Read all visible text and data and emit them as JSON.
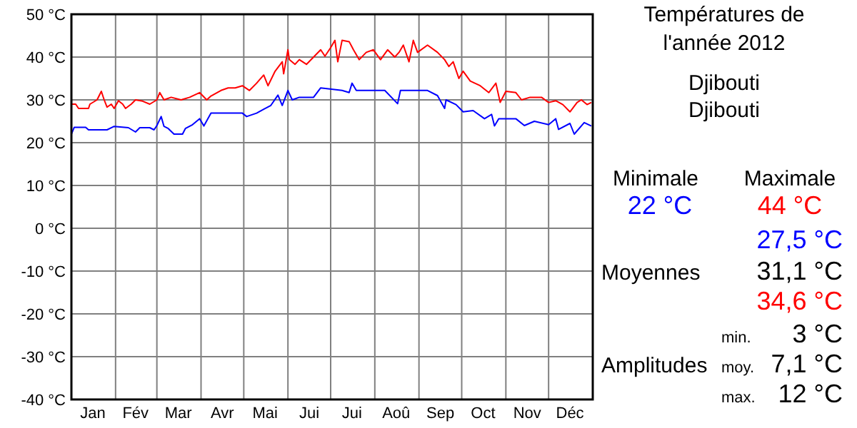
{
  "chart_data": [
    {
      "type": "line",
      "xlim": [
        "2012-01-01",
        "2013-01-01"
      ],
      "ylim": [
        -40,
        50
      ],
      "grid": true,
      "line_style": "solid",
      "marker": "none",
      "xticks": [
        {
          "value": "2012-01-01",
          "label": null
        },
        {
          "value": "2012-01-16",
          "label": "Jan"
        },
        {
          "value": "2012-02-01",
          "label": null
        },
        {
          "value": "2012-02-15",
          "label": "Fév"
        },
        {
          "value": "2012-03-01",
          "label": null
        },
        {
          "value": "2012-03-16",
          "label": "Mar"
        },
        {
          "value": "2012-04-01",
          "label": null
        },
        {
          "value": "2012-04-16",
          "label": "Avr"
        },
        {
          "value": "2012-05-01",
          "label": null
        },
        {
          "value": "2012-05-16",
          "label": "Mai"
        },
        {
          "value": "2012-06-01",
          "label": null
        },
        {
          "value": "2012-06-16",
          "label": "Jui"
        },
        {
          "value": "2012-07-01",
          "label": null
        },
        {
          "value": "2012-07-16",
          "label": "Jui"
        },
        {
          "value": "2012-08-01",
          "label": null
        },
        {
          "value": "2012-08-16",
          "label": "Aoû"
        },
        {
          "value": "2012-09-01",
          "label": null
        },
        {
          "value": "2012-09-16",
          "label": "Sep"
        },
        {
          "value": "2012-10-01",
          "label": null
        },
        {
          "value": "2012-10-16",
          "label": "Oct"
        },
        {
          "value": "2012-11-01",
          "label": null
        },
        {
          "value": "2012-11-16",
          "label": "Nov"
        },
        {
          "value": "2012-12-01",
          "label": null
        },
        {
          "value": "2012-12-16",
          "label": "Déc"
        },
        {
          "value": "2013-01-01",
          "label": null
        }
      ],
      "yticks": [
        {
          "value": -40,
          "label": "-40 °C"
        },
        {
          "value": -30,
          "label": "-30 °C"
        },
        {
          "value": -20,
          "label": "-20 °C"
        },
        {
          "value": -10,
          "label": "-10 °C"
        },
        {
          "value": 0,
          "label": "0 °C"
        },
        {
          "value": 10,
          "label": "10 °C"
        },
        {
          "value": 20,
          "label": "20 °C"
        },
        {
          "value": 30,
          "label": "30 °C"
        },
        {
          "value": 40,
          "label": "40 °C"
        },
        {
          "value": 50,
          "label": "50 °C"
        }
      ],
      "series": [
        {
          "color": "#ff0000",
          "x": [
            "2012-01-01",
            "2012-01-04",
            "2012-01-06",
            "2012-01-13",
            "2012-01-14",
            "2012-01-19",
            "2012-01-22",
            "2012-01-24",
            "2012-01-26",
            "2012-01-29",
            "2012-01-31",
            "2012-02-03",
            "2012-02-06",
            "2012-02-08",
            "2012-02-12",
            "2012-02-15",
            "2012-02-20",
            "2012-02-25",
            "2012-03-01",
            "2012-03-03",
            "2012-03-06",
            "2012-03-11",
            "2012-03-18",
            "2012-03-24",
            "2012-03-31",
            "2012-04-05",
            "2012-04-08",
            "2012-04-15",
            "2012-04-20",
            "2012-04-25",
            "2012-04-30",
            "2012-05-05",
            "2012-05-10",
            "2012-05-15",
            "2012-05-18",
            "2012-05-23",
            "2012-05-28",
            "2012-05-29",
            "2012-06-01",
            "2012-06-02",
            "2012-06-06",
            "2012-06-09",
            "2012-06-14",
            "2012-06-19",
            "2012-06-24",
            "2012-06-27",
            "2012-07-01",
            "2012-07-04",
            "2012-07-06",
            "2012-07-09",
            "2012-07-14",
            "2012-07-17",
            "2012-07-21",
            "2012-07-26",
            "2012-07-31",
            "2012-08-05",
            "2012-08-10",
            "2012-08-15",
            "2012-08-18",
            "2012-08-21",
            "2012-08-25",
            "2012-08-28",
            "2012-08-31",
            "2012-09-07",
            "2012-09-14",
            "2012-09-19",
            "2012-09-22",
            "2012-09-25",
            "2012-09-29",
            "2012-10-02",
            "2012-10-07",
            "2012-10-14",
            "2012-10-20",
            "2012-10-25",
            "2012-10-28",
            "2012-11-01",
            "2012-11-08",
            "2012-11-12",
            "2012-11-18",
            "2012-11-26",
            "2012-12-01",
            "2012-12-06",
            "2012-12-11",
            "2012-12-16",
            "2012-12-21",
            "2012-12-24",
            "2012-12-28",
            "2012-12-31"
          ],
          "values": [
            29,
            29,
            28,
            28,
            29,
            30,
            32,
            30,
            28.3,
            29,
            28,
            29.8,
            29,
            28,
            29,
            30,
            29.7,
            29,
            30,
            31.7,
            30,
            30.6,
            30,
            30.6,
            31.7,
            30,
            30.9,
            32.2,
            32.8,
            32.8,
            33.3,
            32.2,
            33.9,
            35.8,
            33.3,
            36.7,
            38.9,
            36.1,
            41.7,
            39.4,
            38.3,
            39.4,
            38.3,
            40,
            41.7,
            40.2,
            42.2,
            43.9,
            38.9,
            43.9,
            43.6,
            41.7,
            39.4,
            41.1,
            41.7,
            39.4,
            41.7,
            40,
            41.1,
            42.8,
            38.9,
            43.9,
            41.1,
            42.8,
            41.1,
            39.4,
            37.8,
            38.9,
            35,
            36.7,
            34.4,
            33.3,
            31.7,
            33.9,
            29.4,
            32,
            31.7,
            30,
            30.6,
            30.6,
            29.4,
            29.8,
            28.9,
            27.2,
            29.4,
            30,
            28.9,
            29.4
          ]
        },
        {
          "color": "#0000ff",
          "x": [
            "2012-01-01",
            "2012-01-03",
            "2012-01-11",
            "2012-01-13",
            "2012-01-26",
            "2012-01-31",
            "2012-02-10",
            "2012-02-15",
            "2012-02-18",
            "2012-02-25",
            "2012-02-28",
            "2012-03-01",
            "2012-03-04",
            "2012-03-06",
            "2012-03-09",
            "2012-03-13",
            "2012-03-19",
            "2012-03-21",
            "2012-03-26",
            "2012-03-31",
            "2012-04-03",
            "2012-04-08",
            "2012-04-20",
            "2012-04-30",
            "2012-05-03",
            "2012-05-10",
            "2012-05-15",
            "2012-05-20",
            "2012-05-25",
            "2012-05-28",
            "2012-06-01",
            "2012-06-04",
            "2012-06-09",
            "2012-06-19",
            "2012-06-24",
            "2012-07-09",
            "2012-07-14",
            "2012-07-16",
            "2012-07-19",
            "2012-07-29",
            "2012-08-08",
            "2012-08-17",
            "2012-08-19",
            "2012-08-28",
            "2012-09-07",
            "2012-09-14",
            "2012-09-19",
            "2012-09-20",
            "2012-09-27",
            "2012-10-02",
            "2012-10-09",
            "2012-10-17",
            "2012-10-22",
            "2012-10-24",
            "2012-10-27",
            "2012-11-08",
            "2012-11-14",
            "2012-11-21",
            "2012-12-01",
            "2012-12-06",
            "2012-12-08",
            "2012-12-16",
            "2012-12-19",
            "2012-12-26",
            "2012-12-31"
          ],
          "values": [
            22,
            23.6,
            23.6,
            23,
            23,
            23.8,
            23.5,
            22.5,
            23.5,
            23.5,
            23,
            24,
            26.1,
            23.8,
            23.3,
            22,
            22,
            23.3,
            24.2,
            25.6,
            23.9,
            26.9,
            26.9,
            26.9,
            26.1,
            26.9,
            27.8,
            28.7,
            31.1,
            28.7,
            32.2,
            30,
            30.6,
            30.6,
            32.8,
            32.2,
            31.7,
            33.9,
            32.2,
            32.2,
            32.2,
            29.1,
            32.2,
            32.2,
            32.2,
            31,
            28,
            30,
            28.9,
            27.2,
            27.5,
            25.6,
            26.6,
            23.9,
            25.6,
            25.6,
            24,
            25,
            24.2,
            25.6,
            23.1,
            24.5,
            22,
            24.7,
            23.9
          ]
        }
      ]
    },
    {
      "type": "other",
      "title": "Températures de\nl'année 2012",
      "subtitle": "Djibouti\nDjibouti",
      "annotations": [
        "Minimale",
        "Maximale",
        "22 °C",
        "44 °C",
        "27,5 °C",
        "Moyennes",
        "31,1 °C",
        "34,6 °C",
        "min.",
        "3 °C",
        "Amplitudes",
        "moy.",
        "7,1 °C",
        "max.",
        "12 °C"
      ]
    }
  ]
}
